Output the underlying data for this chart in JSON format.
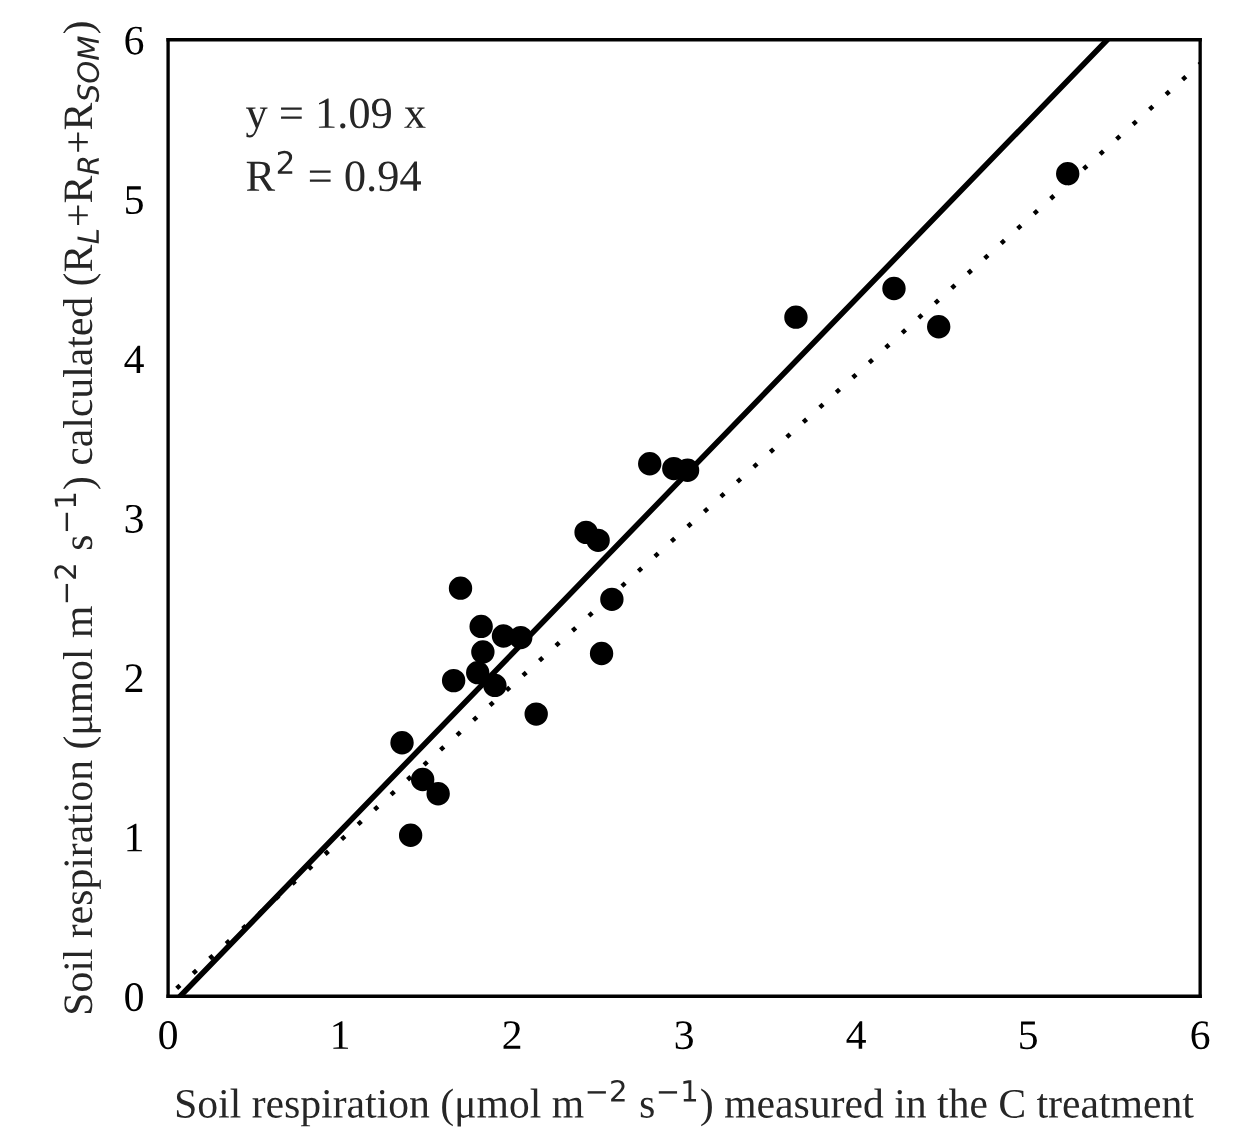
{
  "chart_data": {
    "type": "scatter",
    "xlabel": "Soil respiration (μmol m$^{−2}$ s$^{−1}$) measured in the C treatment",
    "ylabel": "Soil respiration (μmol m$^{−2}$ s$^{−1}$) calculated (R$_{L}$+R$_{R}$+R$_{SOM}$)",
    "annotations": [
      "y = 1.09 x",
      "R$^{2}$ = 0.94"
    ],
    "xlim": [
      0,
      6
    ],
    "ylim": [
      0,
      6
    ],
    "xticks": [
      0,
      1,
      2,
      3,
      4,
      5,
      6
    ],
    "yticks": [
      0,
      1,
      2,
      3,
      4,
      5,
      6
    ],
    "grid": false,
    "marker": "circle",
    "series": [
      {
        "color": "#000000",
        "x": [
          1.36,
          1.41,
          1.48,
          1.57,
          1.66,
          1.7,
          1.8,
          1.82,
          1.83,
          1.9,
          1.95,
          2.05,
          2.14,
          2.43,
          2.5,
          2.52,
          2.58,
          2.8,
          2.94,
          3.02,
          3.65,
          4.22,
          4.48,
          5.23
        ],
        "values": [
          1.59,
          1.01,
          1.36,
          1.27,
          1.98,
          2.56,
          2.03,
          2.32,
          2.16,
          1.95,
          2.26,
          2.25,
          1.77,
          2.91,
          2.86,
          2.15,
          2.49,
          3.34,
          3.31,
          3.3,
          4.26,
          4.44,
          4.2,
          5.16
        ]
      },
      {
        "type": "line",
        "color": "#000000",
        "line_style": "solid",
        "marker": "none",
        "x": [
          0.07,
          5.46
        ],
        "values": [
          0,
          6
        ]
      },
      {
        "type": "line",
        "color": "#000000",
        "line_style": "dotted",
        "marker": "none",
        "x": [
          0.05,
          6
        ],
        "values": [
          0.05,
          5.85
        ]
      }
    ]
  }
}
